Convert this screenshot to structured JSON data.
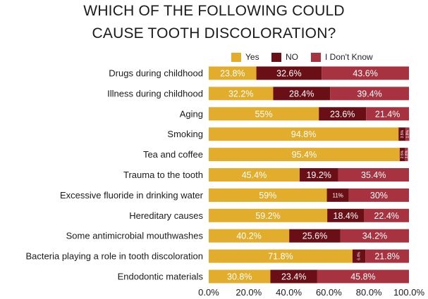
{
  "chart_data": {
    "type": "bar",
    "orientation": "horizontal",
    "stacked": true,
    "title": "WHICH OF THE FOLLOWING COULD CAUSE TOOTH DISCOLORATION?",
    "title_lines": [
      "WHICH OF THE FOLLOWING COULD",
      "CAUSE TOOTH DISCOLORATION?"
    ],
    "categories": [
      "Drugs during childhood",
      "Illness during childhood",
      "Aging",
      "Smoking",
      "Tea and coffee",
      "Trauma to the tooth",
      "Excessive fluoride in drinking water",
      "Hereditary causes",
      "Some antimicrobial mouthwashes",
      "Bacteria playing a role in tooth discoloration",
      "Endodontic materials"
    ],
    "series": [
      {
        "name": "Yes",
        "color": "#e2ad2c",
        "values": [
          23.8,
          32.2,
          55,
          94.8,
          95.4,
          45.4,
          59,
          59.2,
          40.2,
          71.8,
          30.8
        ],
        "labels": [
          "23.8%",
          "32.2%",
          "55%",
          "94.8%",
          "95.4%",
          "45.4%",
          "59%",
          "59.2%",
          "40.2%",
          "71.8%",
          "30.8%"
        ]
      },
      {
        "name": "NO",
        "color": "#6b0f16",
        "values": [
          32.6,
          28.4,
          23.6,
          3.5,
          2.5,
          19.2,
          11,
          18.4,
          25.6,
          6.4,
          23.4
        ],
        "labels": [
          "32.6%",
          "28.4%",
          "23.6%",
          "3.5%",
          "2.5%",
          "19.2%",
          "11%",
          "18.4%",
          "25.6%",
          "6.4%",
          "23.4%"
        ]
      },
      {
        "name": "I Don't Know",
        "color": "#a6333f",
        "values": [
          43.6,
          39.4,
          21.4,
          1.9,
          1.6,
          35.4,
          30,
          22.4,
          34.2,
          21.8,
          45.8
        ],
        "labels": [
          "43.6%",
          "39.4%",
          "21.4%",
          "1.9%",
          "1.6%",
          "35.4%",
          "30%",
          "22.4%",
          "34.2%",
          "21.8%",
          "45.8%"
        ]
      }
    ],
    "xlim": [
      0,
      100
    ],
    "xticks": [
      "0.0%",
      "20.0%",
      "40.0%",
      "60.0%",
      "80.0%",
      "100.0%"
    ],
    "xlabel": "",
    "ylabel": "",
    "grid": false,
    "legend_position": "top-right"
  }
}
